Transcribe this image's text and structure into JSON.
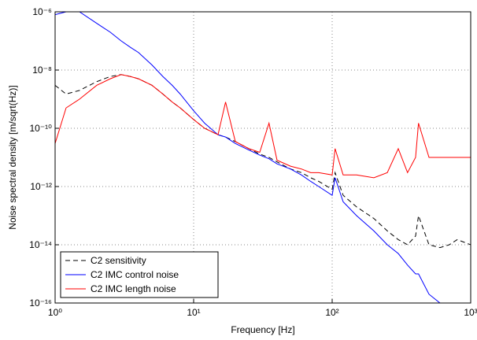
{
  "chart_data": {
    "type": "line",
    "xlabel": "Frequency [Hz]",
    "ylabel": "Noise spectral density [m/sqrt(Hz)]",
    "xscale": "log",
    "yscale": "log",
    "grid": true,
    "legend": "lower left",
    "xlim": [
      1,
      1000
    ],
    "ylim": [
      1e-16,
      1e-06
    ],
    "xticks": [
      {
        "value": 1,
        "label": "10⁰"
      },
      {
        "value": 10,
        "label": "10¹"
      },
      {
        "value": 100,
        "label": "10²"
      },
      {
        "value": 1000,
        "label": "10³"
      }
    ],
    "yticks": [
      {
        "value": 1e-16,
        "label": "10⁻¹⁶"
      },
      {
        "value": 1e-14,
        "label": "10⁻¹⁴"
      },
      {
        "value": 1e-12,
        "label": "10⁻¹²"
      },
      {
        "value": 1e-10,
        "label": "10⁻¹⁰"
      },
      {
        "value": 1e-08,
        "label": "10⁻⁸"
      },
      {
        "value": 1e-06,
        "label": "10⁻⁶"
      }
    ],
    "x": [
      1,
      1.2,
      1.5,
      2,
      2.5,
      3,
      3.5,
      4,
      5,
      6,
      7,
      8,
      10,
      12,
      15,
      17,
      20,
      25,
      30,
      35,
      40,
      50,
      60,
      70,
      80,
      100,
      105,
      120,
      150,
      200,
      250,
      300,
      350,
      400,
      420,
      500,
      600,
      700,
      800,
      1000
    ],
    "series": [
      {
        "name": "C2 sensitivity",
        "color": "#000000",
        "dash": "dashed",
        "values": [
          3e-09,
          1.5e-09,
          2e-09,
          4e-09,
          6e-09,
          7e-09,
          6e-09,
          5e-09,
          3e-09,
          1.5e-09,
          8e-10,
          5e-10,
          2e-10,
          1e-10,
          6e-11,
          5e-11,
          3.5e-11,
          2e-11,
          1.3e-11,
          1e-11,
          7e-12,
          4e-12,
          3e-12,
          2e-12,
          1.5e-12,
          8e-13,
          3e-12,
          5e-13,
          2e-13,
          8e-14,
          3e-14,
          1.5e-14,
          1e-14,
          2e-14,
          1e-13,
          1e-14,
          8e-15,
          1e-14,
          1.5e-14,
          1e-14
        ]
      },
      {
        "name": "C2 IMC control noise",
        "color": "#0000ff",
        "dash": "solid",
        "values": [
          8e-07,
          1e-06,
          1e-06,
          4e-07,
          2e-07,
          1e-07,
          6e-08,
          4e-08,
          1.5e-08,
          6e-09,
          3e-09,
          1.5e-09,
          4e-10,
          1.5e-10,
          6e-11,
          5e-11,
          3e-11,
          1.8e-11,
          1.2e-11,
          9e-12,
          6e-12,
          4e-12,
          2.5e-12,
          1.5e-12,
          1e-12,
          5e-13,
          2e-12,
          3e-13,
          1e-13,
          3e-14,
          1e-14,
          5e-15,
          2e-15,
          1e-15,
          1e-15,
          2e-16,
          1e-16,
          null,
          null,
          null
        ]
      },
      {
        "name": "C2 IMC length noise",
        "color": "#ff0000",
        "dash": "solid",
        "values": [
          3e-11,
          5e-10,
          1e-09,
          3e-09,
          5e-09,
          7e-09,
          6e-09,
          5e-09,
          3e-09,
          1.5e-09,
          8e-10,
          5e-10,
          2e-10,
          1e-10,
          6e-11,
          8e-10,
          3.5e-11,
          2e-11,
          1.5e-11,
          1.5e-10,
          8e-12,
          5e-12,
          4e-12,
          3e-12,
          3e-12,
          2.5e-12,
          2e-11,
          2.5e-12,
          2.5e-12,
          2e-12,
          3e-12,
          2e-11,
          3e-12,
          1e-11,
          1.5e-10,
          1e-11,
          1e-11,
          1e-11,
          1e-11,
          1e-11
        ]
      }
    ]
  }
}
